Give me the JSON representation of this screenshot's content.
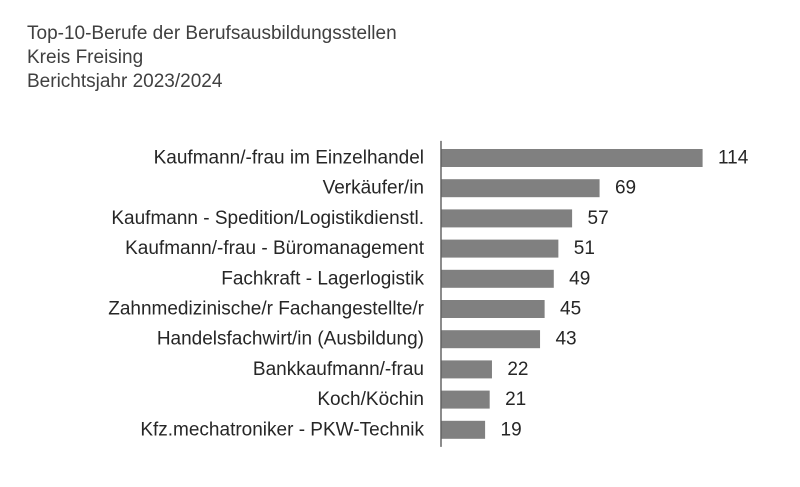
{
  "chart_data": {
    "type": "bar",
    "orientation": "horizontal",
    "title": "Top-10-Berufe der Berufsausbildungsstellen",
    "subtitle": [
      "Kreis Freising",
      "Berichtsjahr 2023/2024"
    ],
    "categories": [
      "Kaufmann/-frau im Einzelhandel",
      "Verkäufer/in",
      "Kaufmann - Spedition/Logistikdienstl.",
      "Kaufmann/-frau - Büromanagement",
      "Fachkraft - Lagerlogistik",
      "Zahnmedizinische/r Fachangestellte/r",
      "Handelsfachwirt/in (Ausbildung)",
      "Bankkaufmann/-frau",
      "Koch/Köchin",
      "Kfz.mechatroniker - PKW-Technik"
    ],
    "values": [
      114,
      69,
      57,
      51,
      49,
      45,
      43,
      22,
      21,
      19
    ],
    "data_labels": [
      "114",
      "69",
      "57",
      "51",
      "49",
      "45",
      "43",
      "22",
      "21",
      "19"
    ],
    "xlim": [
      0,
      114
    ],
    "grid": false,
    "legend": "none",
    "bar_color": "#808080",
    "axis_color": "#404040"
  }
}
